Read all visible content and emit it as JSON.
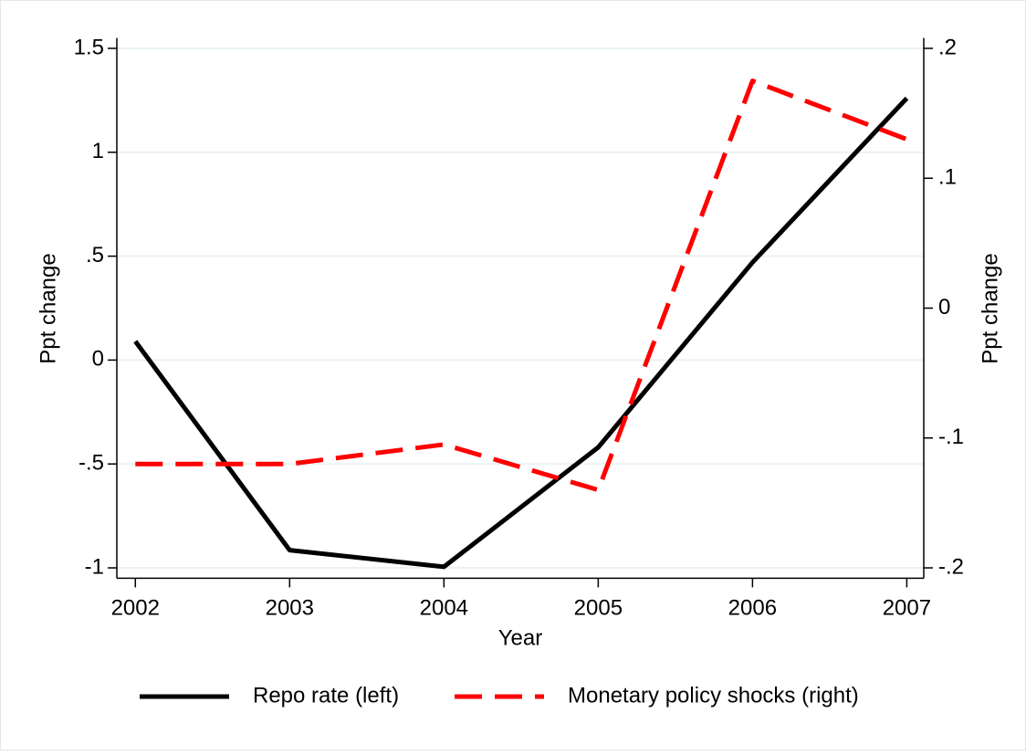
{
  "chart_data": {
    "type": "line",
    "x_label": "Year",
    "y_label": "Ppt change",
    "y2_label": "Ppt change",
    "x": [
      2002,
      2003,
      2004,
      2005,
      2006,
      2007
    ],
    "xlim": [
      2001.88,
      2007.11
    ],
    "xticks": [
      2002,
      2003,
      2004,
      2005,
      2006,
      2007
    ],
    "ylim": [
      -1.05,
      1.55
    ],
    "yticks": [
      -1,
      {
        "value": -0.5,
        "label": "-.5"
      },
      0,
      {
        "value": 0.5,
        "label": ".5"
      },
      1,
      1.5
    ],
    "y2lim": [
      -0.208,
      0.208
    ],
    "y2ticks": [
      {
        "value": -0.2,
        "label": "-.2"
      },
      {
        "value": -0.1,
        "label": "-.1"
      },
      0,
      {
        "value": 0.1,
        "label": ".1"
      },
      {
        "value": 0.2,
        "label": ".2"
      }
    ],
    "grid": true,
    "legend": "bottom",
    "series": [
      {
        "name": "Repo rate (left)",
        "color": "#000000",
        "dash": false,
        "values": [
          0.09,
          -0.915,
          -0.995,
          -0.42,
          0.47,
          1.26
        ]
      },
      {
        "name": "Monetary policy shocks (right)",
        "color": "#ff0000",
        "dash": true,
        "axis": "y2",
        "values": [
          -0.12,
          -0.12,
          -0.105,
          -0.14,
          0.175,
          0.13
        ]
      }
    ]
  }
}
